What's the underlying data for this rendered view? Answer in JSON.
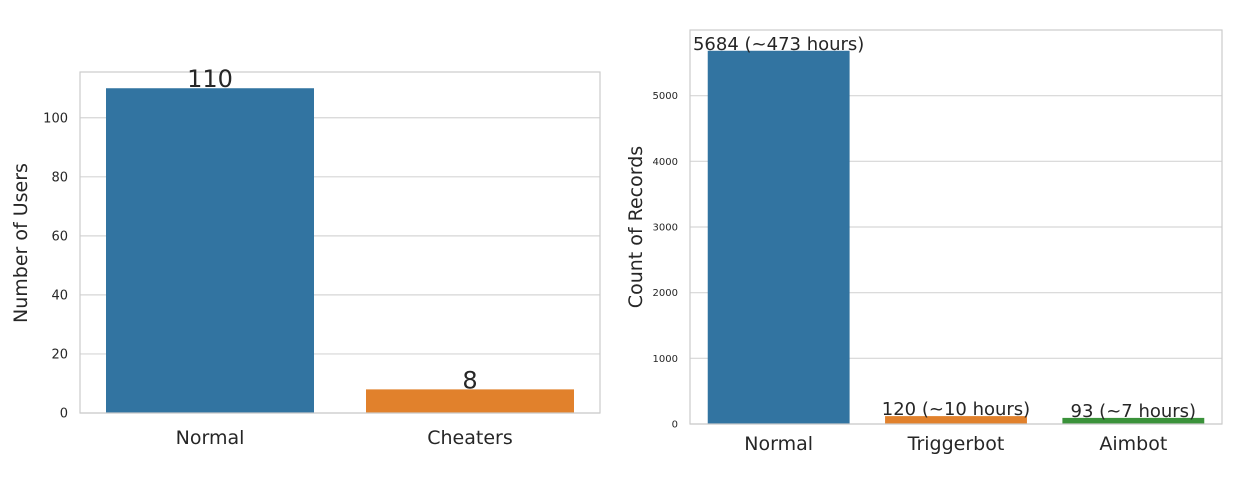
{
  "chart_data": [
    {
      "type": "bar",
      "title": "",
      "xlabel": "",
      "ylabel": "Number of Users",
      "categories": [
        "Normal",
        "Cheaters"
      ],
      "values": [
        110,
        8
      ],
      "data_labels": [
        "110",
        "8"
      ],
      "colors": [
        "#3274a1",
        "#e1812c"
      ],
      "ylim": [
        0,
        115.5
      ],
      "yticks": [
        0,
        20,
        40,
        60,
        80,
        100
      ],
      "grid": true
    },
    {
      "type": "bar",
      "title": "",
      "xlabel": "",
      "ylabel": "Count of Records",
      "categories": [
        "Normal",
        "Triggerbot",
        "Aimbot"
      ],
      "values": [
        5684,
        120,
        93
      ],
      "data_labels": [
        "5684 (~473 hours)",
        "120 (~10 hours)",
        "93 (~7 hours)"
      ],
      "colors": [
        "#3274a1",
        "#e1812c",
        "#3a923a"
      ],
      "ylim": [
        0,
        6000
      ],
      "yticks": [
        0,
        1000,
        2000,
        3000,
        4000,
        5000
      ],
      "grid": true
    }
  ]
}
